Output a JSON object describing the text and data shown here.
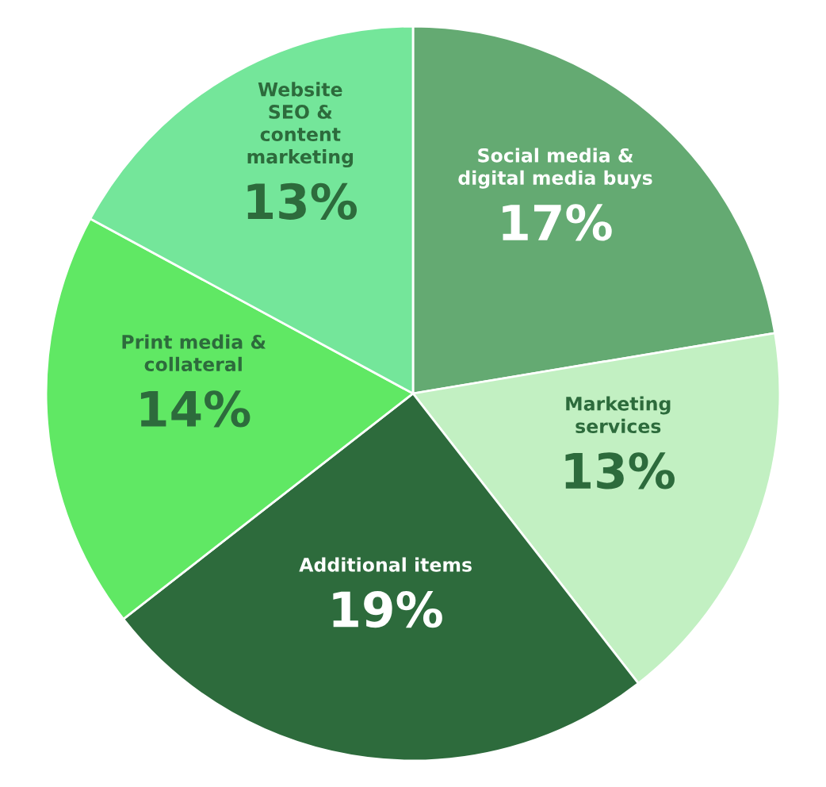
{
  "chart_data": {
    "type": "pie",
    "categories": [
      "Social media &\ndigital media buys",
      "Marketing\nservices",
      "Additional items",
      "Print media &\ncollateral",
      "Website\nSEO &\ncontent\nmarketing"
    ],
    "values": [
      17,
      13,
      19,
      14,
      13
    ],
    "value_labels": [
      "17%",
      "13%",
      "19%",
      "14%",
      "13%"
    ],
    "colors": [
      "#64aa72",
      "#c2f0c2",
      "#2d6b3c",
      "#60e864",
      "#74e69a"
    ]
  }
}
